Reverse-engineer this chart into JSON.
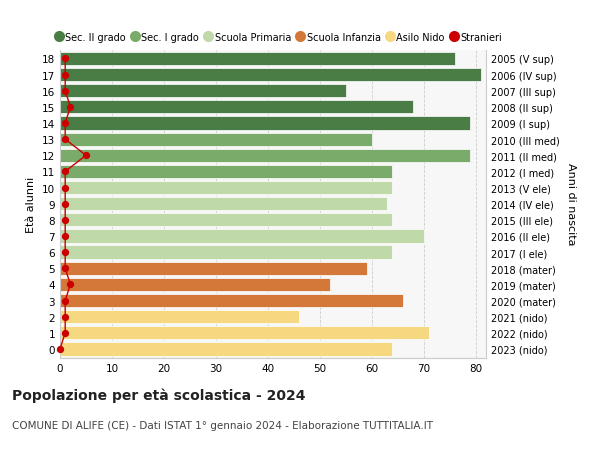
{
  "ages": [
    18,
    17,
    16,
    15,
    14,
    13,
    12,
    11,
    10,
    9,
    8,
    7,
    6,
    5,
    4,
    3,
    2,
    1,
    0
  ],
  "values": [
    76,
    81,
    55,
    68,
    79,
    60,
    79,
    64,
    64,
    63,
    64,
    70,
    64,
    59,
    52,
    66,
    46,
    71,
    64
  ],
  "stranieri": [
    1,
    1,
    1,
    2,
    1,
    1,
    5,
    1,
    1,
    1,
    1,
    1,
    1,
    1,
    2,
    1,
    1,
    1,
    0
  ],
  "right_labels": [
    "2005 (V sup)",
    "2006 (IV sup)",
    "2007 (III sup)",
    "2008 (II sup)",
    "2009 (I sup)",
    "2010 (III med)",
    "2011 (II med)",
    "2012 (I med)",
    "2013 (V ele)",
    "2014 (IV ele)",
    "2015 (III ele)",
    "2016 (II ele)",
    "2017 (I ele)",
    "2018 (mater)",
    "2019 (mater)",
    "2020 (mater)",
    "2021 (nido)",
    "2022 (nido)",
    "2023 (nido)"
  ],
  "bar_colors": [
    "#4a7c45",
    "#4a7c45",
    "#4a7c45",
    "#4a7c45",
    "#4a7c45",
    "#7aab6a",
    "#7aab6a",
    "#7aab6a",
    "#c0d9a8",
    "#c0d9a8",
    "#c0d9a8",
    "#c0d9a8",
    "#c0d9a8",
    "#d4783a",
    "#d4783a",
    "#d4783a",
    "#f5d880",
    "#f5d880",
    "#f5d880"
  ],
  "legend_labels": [
    "Sec. II grado",
    "Sec. I grado",
    "Scuola Primaria",
    "Scuola Infanzia",
    "Asilo Nido",
    "Stranieri"
  ],
  "legend_colors": [
    "#4a7c45",
    "#7aab6a",
    "#c0d9a8",
    "#d4783a",
    "#f5d880",
    "#cc0000"
  ],
  "ylabel_left": "Età alunni",
  "ylabel_right": "Anni di nascita",
  "title": "Popolazione per età scolastica - 2024",
  "subtitle": "COMUNE DI ALIFE (CE) - Dati ISTAT 1° gennaio 2024 - Elaborazione TUTTITALIA.IT",
  "xlim": [
    0,
    82
  ],
  "xticks": [
    0,
    10,
    20,
    30,
    40,
    50,
    60,
    70,
    80
  ],
  "background_color": "#f7f7f7",
  "stranieri_color": "#cc0000",
  "grid_color": "#cccccc"
}
